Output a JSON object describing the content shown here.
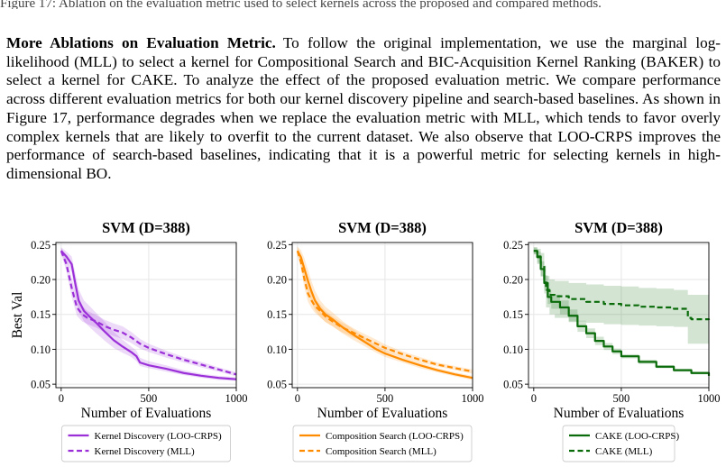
{
  "header": {
    "top_fragment": "Figure 17: Ablation on the evaluation metric used to select kernels across the proposed and compared methods."
  },
  "paragraph": {
    "heading": "More Ablations on Evaluation Metric.",
    "body": "To follow the original implementation, we use the marginal log-likelihood (MLL) to select a kernel for Compositional Search and BIC-Acquisition Kernel Ranking (BAKER) to select a kernel for CAKE. To analyze the effect of the proposed evaluation metric. We compare performance across different evaluation metrics for both our kernel discovery pipeline and search-based baselines. As shown in Figure 17, performance degrades when we replace the evaluation metric with MLL, which tends to favor overly complex kernels that are likely to overfit to the current dataset. We also observe that LOO-CRPS improves the performance of search-based baselines, indicating that it is a powerful metric for selecting kernels in high-dimensional BO."
  },
  "chart_data": [
    {
      "type": "line",
      "title": "SVM (D=388)",
      "xlabel": "Number of Evaluations",
      "ylabel": "Best Val",
      "xlim": [
        -30,
        1000
      ],
      "ylim": [
        0.045,
        0.253
      ],
      "xticks": [
        0,
        500,
        1000
      ],
      "yticks": [
        0.05,
        0.1,
        0.15,
        0.2,
        0.25
      ],
      "xtick_labels": [
        "0",
        "500",
        "1000"
      ],
      "ytick_labels": [
        "0.05",
        "0.10",
        "0.15",
        "0.20",
        "0.25"
      ],
      "grid": true,
      "legend_position": "below",
      "color": "#9b30d9",
      "series": [
        {
          "name": "Kernel Discovery (LOO-CRPS)",
          "style": "solid",
          "x": [
            0,
            30,
            60,
            80,
            100,
            130,
            170,
            200,
            250,
            300,
            350,
            400,
            430,
            450,
            500,
            600,
            700,
            800,
            900,
            1000
          ],
          "y": [
            0.241,
            0.233,
            0.222,
            0.195,
            0.17,
            0.155,
            0.145,
            0.138,
            0.125,
            0.113,
            0.104,
            0.096,
            0.09,
            0.081,
            0.077,
            0.072,
            0.066,
            0.062,
            0.059,
            0.057
          ],
          "band_lower": [
            0.236,
            0.225,
            0.21,
            0.18,
            0.155,
            0.14,
            0.13,
            0.123,
            0.112,
            0.102,
            0.095,
            0.089,
            0.083,
            0.076,
            0.073,
            0.068,
            0.063,
            0.059,
            0.056,
            0.055
          ],
          "band_upper": [
            0.246,
            0.24,
            0.233,
            0.21,
            0.186,
            0.17,
            0.16,
            0.152,
            0.139,
            0.125,
            0.114,
            0.104,
            0.098,
            0.088,
            0.083,
            0.077,
            0.07,
            0.065,
            0.062,
            0.06
          ]
        },
        {
          "name": "Kernel Discovery (MLL)",
          "style": "dashed",
          "x": [
            0,
            30,
            60,
            90,
            120,
            150,
            200,
            250,
            300,
            350,
            400,
            450,
            500,
            600,
            700,
            800,
            900,
            1000
          ],
          "y": [
            0.241,
            0.222,
            0.188,
            0.16,
            0.15,
            0.145,
            0.14,
            0.133,
            0.128,
            0.124,
            0.117,
            0.108,
            0.102,
            0.093,
            0.085,
            0.078,
            0.071,
            0.064
          ],
          "band_lower": [
            0.236,
            0.212,
            0.175,
            0.148,
            0.14,
            0.136,
            0.131,
            0.124,
            0.119,
            0.115,
            0.109,
            0.101,
            0.096,
            0.088,
            0.081,
            0.074,
            0.068,
            0.061
          ],
          "band_upper": [
            0.246,
            0.232,
            0.202,
            0.174,
            0.162,
            0.155,
            0.149,
            0.142,
            0.137,
            0.133,
            0.125,
            0.115,
            0.108,
            0.098,
            0.089,
            0.082,
            0.074,
            0.067
          ]
        }
      ]
    },
    {
      "type": "line",
      "title": "SVM (D=388)",
      "xlabel": "Number of Evaluations",
      "ylabel": "",
      "xlim": [
        -30,
        1000
      ],
      "ylim": [
        0.045,
        0.253
      ],
      "xticks": [
        0,
        500,
        1000
      ],
      "yticks": [
        0.05,
        0.1,
        0.15,
        0.2,
        0.25
      ],
      "xtick_labels": [
        "0",
        "500",
        "1000"
      ],
      "ytick_labels": [
        "0.05",
        "0.10",
        "0.15",
        "0.20",
        "0.25"
      ],
      "grid": true,
      "legend_position": "below",
      "color": "#ff8c00",
      "series": [
        {
          "name": "Composition Search (LOO-CRPS)",
          "style": "solid",
          "x": [
            0,
            20,
            40,
            60,
            80,
            100,
            130,
            160,
            200,
            250,
            300,
            350,
            400,
            450,
            500,
            600,
            700,
            800,
            900,
            1000
          ],
          "y": [
            0.241,
            0.232,
            0.215,
            0.198,
            0.183,
            0.17,
            0.158,
            0.15,
            0.143,
            0.133,
            0.124,
            0.116,
            0.108,
            0.1,
            0.094,
            0.085,
            0.077,
            0.07,
            0.064,
            0.059
          ],
          "band_lower": [
            0.235,
            0.222,
            0.2,
            0.182,
            0.168,
            0.156,
            0.146,
            0.139,
            0.133,
            0.124,
            0.116,
            0.109,
            0.102,
            0.095,
            0.089,
            0.081,
            0.073,
            0.067,
            0.061,
            0.056
          ],
          "band_upper": [
            0.247,
            0.242,
            0.23,
            0.214,
            0.198,
            0.184,
            0.17,
            0.161,
            0.153,
            0.142,
            0.132,
            0.123,
            0.114,
            0.105,
            0.099,
            0.089,
            0.081,
            0.073,
            0.067,
            0.062
          ]
        },
        {
          "name": "Composition Search (MLL)",
          "style": "dashed",
          "x": [
            0,
            20,
            40,
            60,
            80,
            100,
            130,
            160,
            200,
            250,
            300,
            350,
            400,
            450,
            500,
            600,
            700,
            800,
            900,
            1000
          ],
          "y": [
            0.241,
            0.225,
            0.2,
            0.18,
            0.17,
            0.162,
            0.155,
            0.147,
            0.14,
            0.132,
            0.126,
            0.12,
            0.114,
            0.108,
            0.102,
            0.093,
            0.085,
            0.078,
            0.073,
            0.068
          ],
          "band_lower": [
            0.235,
            0.215,
            0.188,
            0.168,
            0.159,
            0.152,
            0.146,
            0.139,
            0.133,
            0.125,
            0.119,
            0.114,
            0.108,
            0.102,
            0.097,
            0.089,
            0.081,
            0.075,
            0.07,
            0.065
          ],
          "band_upper": [
            0.247,
            0.235,
            0.212,
            0.192,
            0.181,
            0.172,
            0.164,
            0.155,
            0.147,
            0.139,
            0.133,
            0.126,
            0.12,
            0.114,
            0.107,
            0.097,
            0.089,
            0.081,
            0.076,
            0.071
          ]
        }
      ]
    },
    {
      "type": "line",
      "title": "SVM (D=388)",
      "xlabel": "Number of Evaluations",
      "ylabel": "",
      "xlim": [
        -30,
        1000
      ],
      "ylim": [
        0.045,
        0.253
      ],
      "xticks": [
        0,
        500,
        1000
      ],
      "yticks": [
        0.05,
        0.1,
        0.15,
        0.2,
        0.25
      ],
      "xtick_labels": [
        "0",
        "500",
        "1000"
      ],
      "ytick_labels": [
        "0.05",
        "0.10",
        "0.15",
        "0.20",
        "0.25"
      ],
      "grid": true,
      "legend_position": "below",
      "color": "#0a6b0a",
      "series": [
        {
          "name": "CAKE (LOO-CRPS)",
          "style": "solid",
          "step": true,
          "x": [
            0,
            20,
            40,
            60,
            80,
            100,
            150,
            200,
            250,
            300,
            350,
            400,
            450,
            500,
            600,
            700,
            800,
            900,
            1000
          ],
          "y": [
            0.241,
            0.232,
            0.215,
            0.195,
            0.175,
            0.168,
            0.16,
            0.148,
            0.133,
            0.123,
            0.112,
            0.104,
            0.097,
            0.09,
            0.082,
            0.075,
            0.07,
            0.066,
            0.062
          ],
          "band_lower": [
            0.236,
            0.224,
            0.204,
            0.184,
            0.165,
            0.158,
            0.15,
            0.139,
            0.125,
            0.116,
            0.106,
            0.099,
            0.093,
            0.087,
            0.079,
            0.073,
            0.068,
            0.064,
            0.06
          ],
          "band_upper": [
            0.246,
            0.24,
            0.226,
            0.206,
            0.185,
            0.178,
            0.17,
            0.157,
            0.141,
            0.13,
            0.118,
            0.109,
            0.101,
            0.093,
            0.085,
            0.077,
            0.072,
            0.068,
            0.064
          ]
        },
        {
          "name": "CAKE (MLL)",
          "style": "dashed",
          "step": true,
          "x": [
            0,
            20,
            40,
            60,
            70,
            90,
            120,
            200,
            300,
            400,
            500,
            600,
            700,
            800,
            870,
            880,
            900,
            1000
          ],
          "y": [
            0.241,
            0.233,
            0.22,
            0.2,
            0.185,
            0.178,
            0.176,
            0.172,
            0.168,
            0.165,
            0.163,
            0.161,
            0.16,
            0.158,
            0.158,
            0.145,
            0.143,
            0.142
          ],
          "band_lower": [
            0.236,
            0.222,
            0.205,
            0.18,
            0.16,
            0.15,
            0.145,
            0.14,
            0.138,
            0.136,
            0.135,
            0.134,
            0.133,
            0.132,
            0.132,
            0.108,
            0.108,
            0.108
          ],
          "band_upper": [
            0.246,
            0.244,
            0.238,
            0.22,
            0.205,
            0.2,
            0.198,
            0.195,
            0.193,
            0.191,
            0.19,
            0.188,
            0.187,
            0.185,
            0.185,
            0.178,
            0.178,
            0.178
          ]
        }
      ]
    }
  ]
}
